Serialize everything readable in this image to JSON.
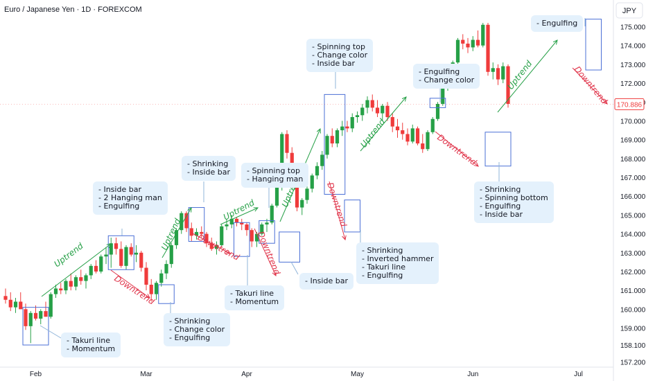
{
  "header": {
    "title": "Euro / Japanese Yen · 1D · FOREXCOM",
    "currency": "JPY"
  },
  "colors": {
    "up": "#26a047",
    "down": "#ef3b3b",
    "box": "#4a6fd6",
    "note_bg": "#e4f1fc",
    "trend_up": "#26a047",
    "trend_down": "#e0344a",
    "price_tag": "#ef3b3b"
  },
  "chart_data": {
    "type": "candlestick",
    "ylim": [
      157.2,
      175.6
    ],
    "y_ticks": [
      "175.000",
      "174.000",
      "173.000",
      "172.000",
      "171.000",
      "170.000",
      "169.000",
      "168.000",
      "167.000",
      "166.000",
      "165.000",
      "164.000",
      "163.000",
      "162.000",
      "161.000",
      "160.000",
      "159.000",
      "158.100",
      "157.200"
    ],
    "y_tick_values": [
      175,
      174,
      173,
      172,
      171,
      170,
      169,
      168,
      167,
      166,
      165,
      164,
      163,
      162,
      161,
      160,
      159,
      158.1,
      157.2
    ],
    "x_ticks": [
      {
        "label": "Feb",
        "index": 6
      },
      {
        "label": "Mar",
        "index": 28
      },
      {
        "label": "Apr",
        "index": 48
      },
      {
        "label": "May",
        "index": 70
      },
      {
        "label": "Jun",
        "index": 93
      },
      {
        "label": "Jul",
        "index": 114
      }
    ],
    "last_price": "170.886",
    "last_price_value": 170.886,
    "candles": [
      [
        160.7,
        161.1,
        160.3,
        160.5
      ],
      [
        160.5,
        160.9,
        159.9,
        160.1
      ],
      [
        160.1,
        160.6,
        159.8,
        160.4
      ],
      [
        160.4,
        160.9,
        160.0,
        160.0
      ],
      [
        160.0,
        160.3,
        158.9,
        159.1
      ],
      [
        159.1,
        159.9,
        158.2,
        159.8
      ],
      [
        159.8,
        160.2,
        159.4,
        159.5
      ],
      [
        159.5,
        160.0,
        159.2,
        159.9
      ],
      [
        159.9,
        160.4,
        159.6,
        159.6
      ],
      [
        159.6,
        160.9,
        159.5,
        160.8
      ],
      [
        160.8,
        161.3,
        160.6,
        161.1
      ],
      [
        161.1,
        161.4,
        160.8,
        161.0
      ],
      [
        161.0,
        161.6,
        160.8,
        161.5
      ],
      [
        161.5,
        161.9,
        161.0,
        161.2
      ],
      [
        161.2,
        161.8,
        161.0,
        161.7
      ],
      [
        161.7,
        162.1,
        161.3,
        161.5
      ],
      [
        161.5,
        161.9,
        161.1,
        161.8
      ],
      [
        161.8,
        162.4,
        161.6,
        162.3
      ],
      [
        162.3,
        162.6,
        161.9,
        162.0
      ],
      [
        162.0,
        162.9,
        161.9,
        162.8
      ],
      [
        162.8,
        163.3,
        162.4,
        162.9
      ],
      [
        162.9,
        163.8,
        162.2,
        163.5
      ],
      [
        163.5,
        163.8,
        162.9,
        163.2
      ],
      [
        163.2,
        163.6,
        162.2,
        162.3
      ],
      [
        162.3,
        163.4,
        162.1,
        163.3
      ],
      [
        163.3,
        163.5,
        162.8,
        162.9
      ],
      [
        162.9,
        163.4,
        162.5,
        163.0
      ],
      [
        163.0,
        163.1,
        162.0,
        162.2
      ],
      [
        162.2,
        162.5,
        161.0,
        161.3
      ],
      [
        161.3,
        161.6,
        160.4,
        160.8
      ],
      [
        160.8,
        161.5,
        160.5,
        161.4
      ],
      [
        161.4,
        162.1,
        161.2,
        161.9
      ],
      [
        161.9,
        162.6,
        161.6,
        162.4
      ],
      [
        162.4,
        163.5,
        162.2,
        163.4
      ],
      [
        163.4,
        164.3,
        163.2,
        164.2
      ],
      [
        164.2,
        165.2,
        164.0,
        165.1
      ],
      [
        165.1,
        165.2,
        164.1,
        164.3
      ],
      [
        164.3,
        164.6,
        163.6,
        163.9
      ],
      [
        163.9,
        164.3,
        163.7,
        164.1
      ],
      [
        164.1,
        164.4,
        163.8,
        164.0
      ],
      [
        164.0,
        164.1,
        163.3,
        163.5
      ],
      [
        163.5,
        163.8,
        163.1,
        163.2
      ],
      [
        163.2,
        163.6,
        162.9,
        163.4
      ],
      [
        163.4,
        164.5,
        163.3,
        164.4
      ],
      [
        164.4,
        164.8,
        164.2,
        164.5
      ],
      [
        164.5,
        165.0,
        164.3,
        164.8
      ],
      [
        164.8,
        164.9,
        164.4,
        164.6
      ],
      [
        164.6,
        164.8,
        164.2,
        164.5
      ],
      [
        164.5,
        164.6,
        163.9,
        164.2
      ],
      [
        164.2,
        164.3,
        163.3,
        163.6
      ],
      [
        163.6,
        164.1,
        163.3,
        164.0
      ],
      [
        164.0,
        164.6,
        163.9,
        164.5
      ],
      [
        164.5,
        164.8,
        164.1,
        164.6
      ],
      [
        164.6,
        165.6,
        164.5,
        165.5
      ],
      [
        165.5,
        166.6,
        165.4,
        166.5
      ],
      [
        166.5,
        169.4,
        166.3,
        169.3
      ],
      [
        169.3,
        169.5,
        168.0,
        168.3
      ],
      [
        168.3,
        168.6,
        166.9,
        167.3
      ],
      [
        167.3,
        167.4,
        165.2,
        165.4
      ],
      [
        165.4,
        165.9,
        165.0,
        165.8
      ],
      [
        165.8,
        166.6,
        165.6,
        166.4
      ],
      [
        166.4,
        167.2,
        166.2,
        167.1
      ],
      [
        167.1,
        167.8,
        166.9,
        167.6
      ],
      [
        167.6,
        168.4,
        167.4,
        168.2
      ],
      [
        168.2,
        169.3,
        168.0,
        169.2
      ],
      [
        169.2,
        169.6,
        168.6,
        168.8
      ],
      [
        168.8,
        169.6,
        168.6,
        169.5
      ],
      [
        169.5,
        170.0,
        169.2,
        169.7
      ],
      [
        169.7,
        170.0,
        169.4,
        169.6
      ],
      [
        169.6,
        170.4,
        169.4,
        170.2
      ],
      [
        170.2,
        170.5,
        169.9,
        170.3
      ],
      [
        170.3,
        170.9,
        170.0,
        170.7
      ],
      [
        170.7,
        171.3,
        170.4,
        171.1
      ],
      [
        171.1,
        171.4,
        170.5,
        170.7
      ],
      [
        170.7,
        171.1,
        170.2,
        170.4
      ],
      [
        170.4,
        170.9,
        170.0,
        170.8
      ],
      [
        170.8,
        171.0,
        170.0,
        170.2
      ],
      [
        170.2,
        170.4,
        169.4,
        169.7
      ],
      [
        169.7,
        170.1,
        169.1,
        169.5
      ],
      [
        169.5,
        169.9,
        169.0,
        169.3
      ],
      [
        169.3,
        169.6,
        168.7,
        168.9
      ],
      [
        168.9,
        169.8,
        168.8,
        169.6
      ],
      [
        169.6,
        169.7,
        168.7,
        168.8
      ],
      [
        168.8,
        169.3,
        168.3,
        168.5
      ],
      [
        168.5,
        169.5,
        168.4,
        169.4
      ],
      [
        169.4,
        170.2,
        169.3,
        170.1
      ],
      [
        170.1,
        171.0,
        170.0,
        170.9
      ],
      [
        170.9,
        171.9,
        170.8,
        171.8
      ],
      [
        171.8,
        172.6,
        171.6,
        172.5
      ],
      [
        172.5,
        173.2,
        172.3,
        173.1
      ],
      [
        173.1,
        174.4,
        173.0,
        174.3
      ],
      [
        174.3,
        174.6,
        173.8,
        174.1
      ],
      [
        174.1,
        174.4,
        173.6,
        173.9
      ],
      [
        173.9,
        174.5,
        173.7,
        174.3
      ],
      [
        174.3,
        174.8,
        173.9,
        174.0
      ],
      [
        174.0,
        175.2,
        173.9,
        175.1
      ],
      [
        175.1,
        175.2,
        172.4,
        172.6
      ],
      [
        172.6,
        173.1,
        172.2,
        172.8
      ],
      [
        172.8,
        173.0,
        171.9,
        172.2
      ],
      [
        172.2,
        173.1,
        172.0,
        172.9
      ],
      [
        172.9,
        173.0,
        170.7,
        170.9
      ]
    ],
    "annotations": [
      {
        "lines": [
          "- Takuri line",
          "- Momentum"
        ]
      },
      {
        "lines": [
          "- Inside bar",
          "- 2 Hanging man",
          "- Engulfing"
        ]
      },
      {
        "lines": [
          "- Shrinking",
          "- Change color",
          "- Engulfing"
        ]
      },
      {
        "lines": [
          "- Shrinking",
          "- Inside bar"
        ]
      },
      {
        "lines": [
          "- Takuri line",
          "- Momentum"
        ]
      },
      {
        "lines": [
          "- Spinning top",
          "- Hanging man"
        ]
      },
      {
        "lines": [
          "- Inside bar"
        ]
      },
      {
        "lines": [
          "- Spinning top",
          "- Change color",
          "- Inside bar"
        ]
      },
      {
        "lines": [
          "- Shrinking",
          "- Inverted hammer",
          "- Takuri line",
          "- Engulfing"
        ]
      },
      {
        "lines": [
          "- Engulfing",
          "- Change color"
        ]
      },
      {
        "lines": [
          "- Shrinking",
          "- Spinning bottom",
          "- Engulfing",
          "- Inside bar"
        ]
      },
      {
        "lines": [
          "- Engulfing"
        ]
      }
    ],
    "trend_labels": {
      "uptrend": "Uptrend",
      "downtrend": "Downtrend"
    }
  }
}
